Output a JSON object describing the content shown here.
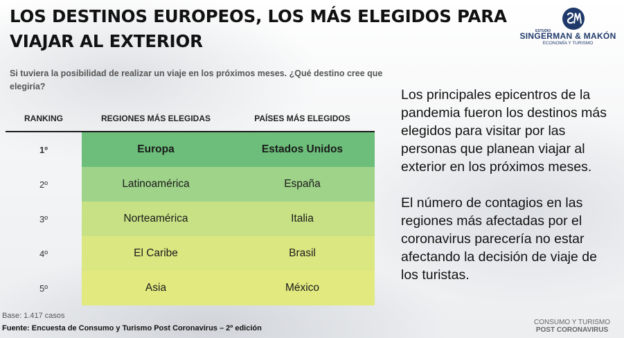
{
  "title": "LOS DESTINOS EUROPEOS, LOS MÁS ELEGIDOS PARA VIAJAR AL EXTERIOR",
  "logo": {
    "estudio": "ESTUDIO",
    "brand": "SINGERMAN & MAKÓN",
    "tagline": "ECONOMÍA Y TURISMO",
    "color": "#1f3a6a"
  },
  "question": "Si tuviera la posibilidad de realizar un viaje en los próximos meses. ¿Qué destino cree que elegiría?",
  "table": {
    "headers": [
      "RANKING",
      "REGIONES MÁS ELEGIDAS",
      "PAÍSES MÁS ELEGIDOS"
    ],
    "rows": [
      {
        "rank": "1º",
        "region": "Europa",
        "country": "Estados Unidos"
      },
      {
        "rank": "2º",
        "region": "Latinoamérica",
        "country": "España"
      },
      {
        "rank": "3º",
        "region": "Norteamérica",
        "country": "Italia"
      },
      {
        "rank": "4º",
        "region": "El Caribe",
        "country": "Brasil"
      },
      {
        "rank": "5º",
        "region": "Asia",
        "country": "México"
      }
    ],
    "row_colors": [
      "#6cbe7a",
      "#9fd38a",
      "#c7e184",
      "#dbe781",
      "#e2e97f"
    ]
  },
  "base_note": "Base: 1.417 casos",
  "source": "Fuente: Encuesta de Consumo y Turismo Post Coronavirus – 2º edición",
  "paragraphs": [
    "Los principales epicentros de la pandemia fueron los destinos más elegidos para visitar por las personas que planean viajar al exterior en los próximos meses.",
    "El número de contagios en las regiones más afectadas por el coronavirus parecería no estar afectando la decisión de viaje de los turistas."
  ],
  "footer_brand": {
    "line1": "CONSUMO Y TURISMO",
    "line2": "POST CORONAVIRUS"
  }
}
